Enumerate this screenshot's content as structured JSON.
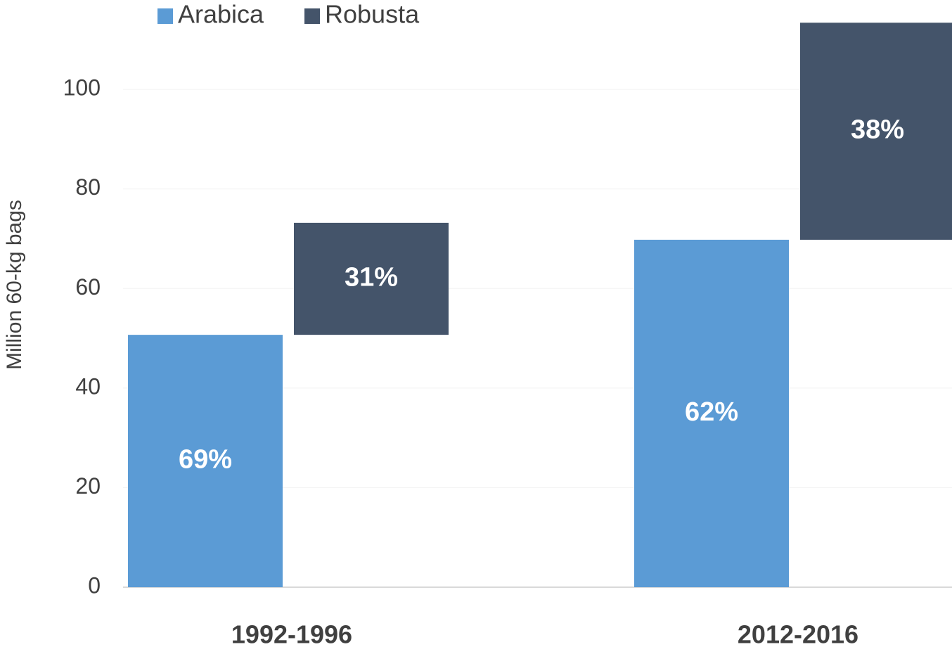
{
  "chart_data": {
    "type": "bar",
    "y_label": "Million 60-kg bags",
    "categories": [
      "1992-1996",
      "2012-2016"
    ],
    "series": [
      {
        "name": "Arabica",
        "color": "#5b9bd5",
        "values": [
          50.7,
          69.8
        ],
        "labels": [
          "69%",
          "62%"
        ]
      },
      {
        "name": "Robusta",
        "color": "#44546a",
        "values": [
          22.5,
          43.6
        ],
        "labels": [
          "31%",
          "38%"
        ]
      }
    ],
    "ylim": [
      0,
      115
    ],
    "yticks": [
      0,
      20,
      40,
      60,
      80,
      100
    ],
    "grid": true,
    "legend": "top-left"
  }
}
